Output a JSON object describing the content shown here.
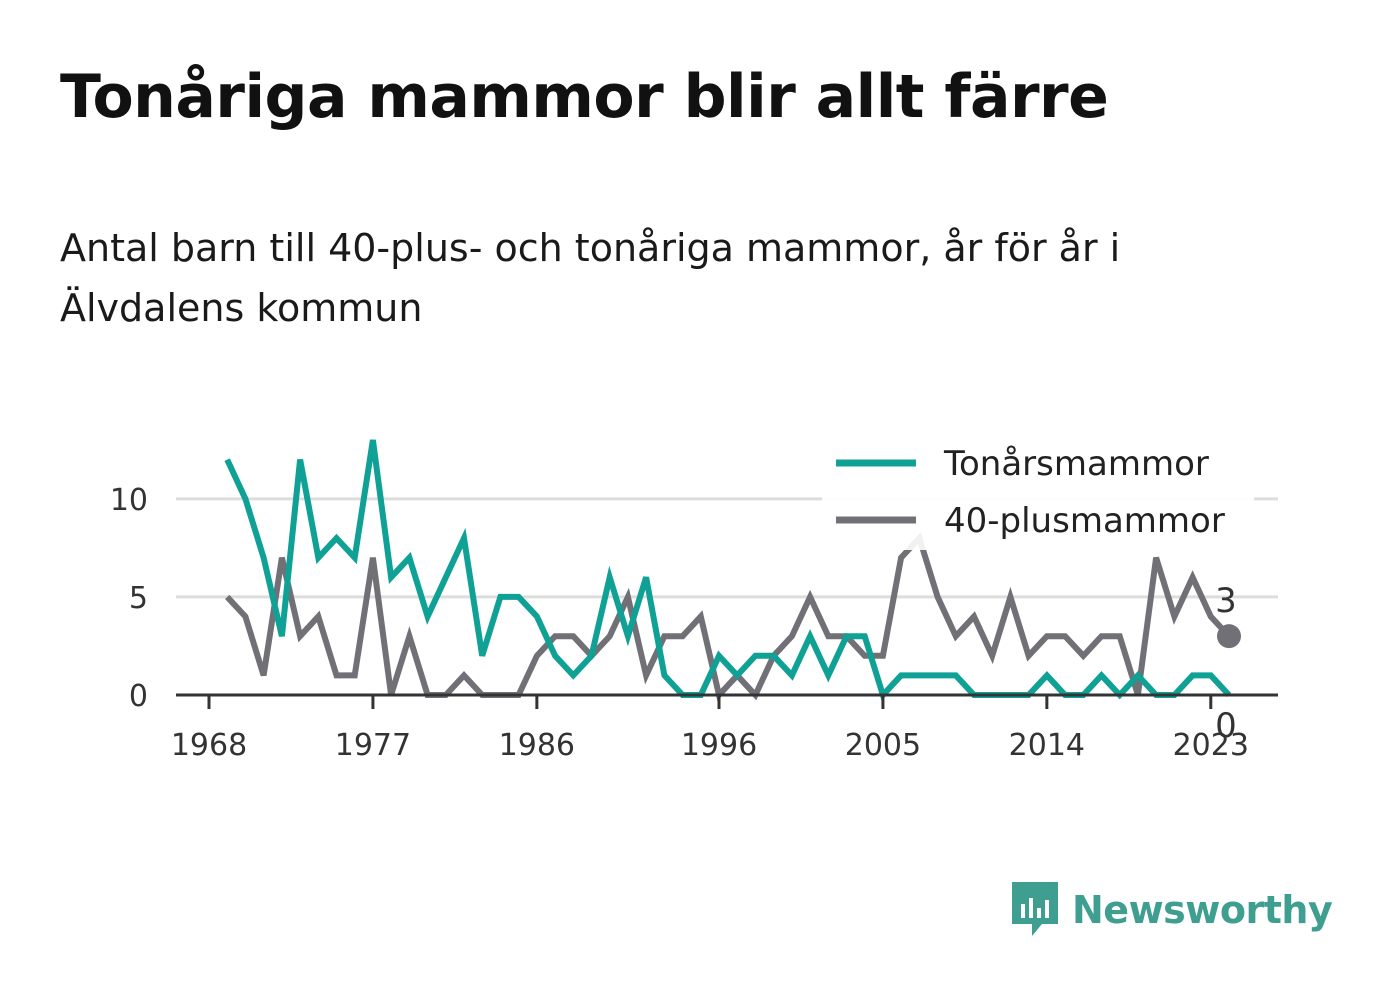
{
  "title": "Tonåriga mammor blir allt färre",
  "subtitle": "Antal barn till 40-plus- och tonåriga mammor, år för år i Älvdalens kommun",
  "logo_text": "Newsworthy",
  "chart_data": {
    "type": "line",
    "x": [
      1969,
      1970,
      1971,
      1972,
      1973,
      1974,
      1975,
      1976,
      1977,
      1978,
      1979,
      1980,
      1981,
      1982,
      1983,
      1984,
      1985,
      1986,
      1987,
      1988,
      1989,
      1990,
      1991,
      1992,
      1993,
      1994,
      1995,
      1996,
      1997,
      1998,
      1999,
      2000,
      2001,
      2002,
      2003,
      2004,
      2005,
      2006,
      2007,
      2008,
      2009,
      2010,
      2011,
      2012,
      2013,
      2014,
      2015,
      2016,
      2017,
      2018,
      2019,
      2020,
      2021,
      2022,
      2023,
      2024
    ],
    "series": [
      {
        "name": "Tonårsmammor",
        "color": "#0fa195",
        "values": [
          12,
          10,
          7,
          3,
          12,
          7,
          8,
          7,
          13,
          6,
          7,
          4,
          6,
          8,
          2,
          5,
          5,
          4,
          2,
          1,
          2,
          6,
          3,
          6,
          1,
          0,
          0,
          2,
          1,
          2,
          2,
          1,
          3,
          1,
          3,
          3,
          0,
          1,
          1,
          1,
          1,
          0,
          0,
          0,
          0,
          1,
          0,
          0,
          1,
          0,
          1,
          0,
          0,
          1,
          1,
          0
        ],
        "end_label": "0"
      },
      {
        "name": "40-plusmammor",
        "color": "#727077",
        "values": [
          5,
          4,
          1,
          7,
          3,
          4,
          1,
          1,
          7,
          0,
          3,
          0,
          0,
          1,
          0,
          0,
          0,
          2,
          3,
          3,
          2,
          3,
          5,
          1,
          3,
          3,
          4,
          0,
          1,
          0,
          2,
          3,
          5,
          3,
          3,
          2,
          2,
          7,
          8,
          5,
          3,
          4,
          2,
          5,
          2,
          3,
          3,
          2,
          3,
          3,
          0,
          7,
          4,
          6,
          4,
          3
        ],
        "end_label": "3"
      }
    ],
    "x_ticks": [
      "1968",
      "1977",
      "1986",
      "1996",
      "2005",
      "2014",
      "2023"
    ],
    "y_ticks": [
      "0",
      "5",
      "10"
    ],
    "xlim": [
      1968,
      2024
    ],
    "ylim": [
      0,
      13
    ],
    "grid": true,
    "legend_position": "top-right",
    "xlabel": "",
    "ylabel": ""
  }
}
